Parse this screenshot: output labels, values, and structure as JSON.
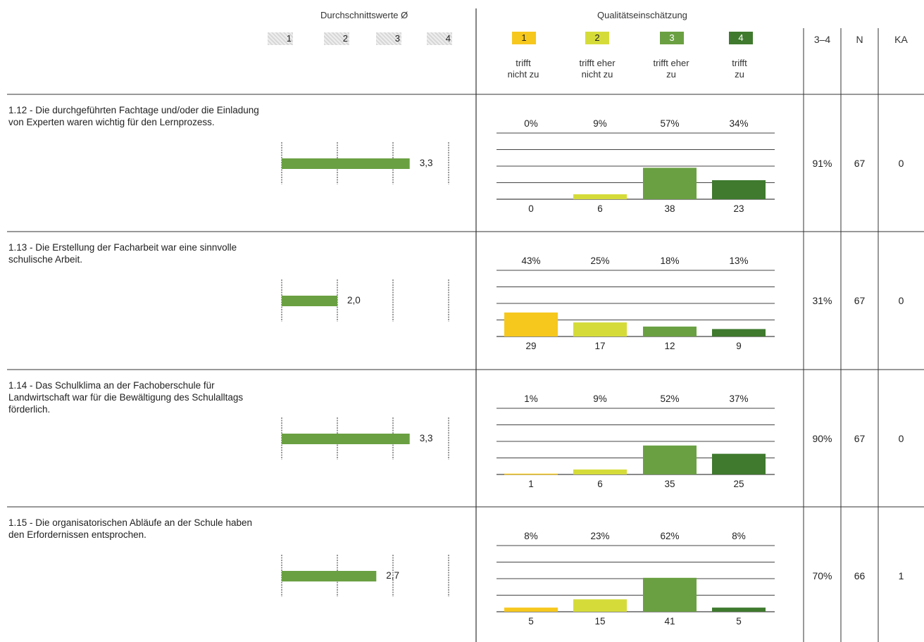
{
  "header": {
    "avg_title": "Durchschnittswerte Ø",
    "quality_title": "Qualitätseinschätzung",
    "scale_labels": [
      "1",
      "2",
      "3",
      "4"
    ],
    "categories": [
      {
        "num": "1",
        "line1": "trifft",
        "line2": "nicht zu"
      },
      {
        "num": "2",
        "line1": "trifft eher",
        "line2": "nicht zu"
      },
      {
        "num": "3",
        "line1": "trifft eher",
        "line2": "zu"
      },
      {
        "num": "4",
        "line1": "trifft",
        "line2": "zu"
      }
    ],
    "col_34": "3–4",
    "col_n": "N",
    "col_ka": "KA"
  },
  "colors": {
    "cat1": "#f6c81e",
    "cat2": "#d5dc3a",
    "cat3": "#6aa042",
    "cat4": "#3f7a2e",
    "avg_bar": "#6aa042"
  },
  "chart_data": [
    {
      "type": "bar",
      "question": "1.12 - Die durchgeführten Fachtage und/oder die Einladung von Experten waren wichtig für den Lernprozess.",
      "average": 3.3,
      "average_label": "3,3",
      "categories": [
        "1",
        "2",
        "3",
        "4"
      ],
      "percents": [
        "0%",
        "9%",
        "57%",
        "34%"
      ],
      "values": [
        0,
        6,
        38,
        23
      ],
      "share_3_4": "91%",
      "n": "67",
      "ka": "0"
    },
    {
      "type": "bar",
      "question": "1.13 - Die Erstellung der Facharbeit war eine sinnvolle schulische Arbeit.",
      "average": 2.0,
      "average_label": "2,0",
      "categories": [
        "1",
        "2",
        "3",
        "4"
      ],
      "percents": [
        "43%",
        "25%",
        "18%",
        "13%"
      ],
      "values": [
        29,
        17,
        12,
        9
      ],
      "share_3_4": "31%",
      "n": "67",
      "ka": "0"
    },
    {
      "type": "bar",
      "question": "1.14 - Das Schulklima an der Fachoberschule für Landwirtschaft war für die Bewältigung des Schulalltags förderlich.",
      "average": 3.3,
      "average_label": "3,3",
      "categories": [
        "1",
        "2",
        "3",
        "4"
      ],
      "percents": [
        "1%",
        "9%",
        "52%",
        "37%"
      ],
      "values": [
        1,
        6,
        35,
        25
      ],
      "share_3_4": "90%",
      "n": "67",
      "ka": "0"
    },
    {
      "type": "bar",
      "question": "1.15 - Die organisatorischen Abläufe an der Schule haben den Erfordernissen entsprochen.",
      "average": 2.7,
      "average_label": "2,7",
      "categories": [
        "1",
        "2",
        "3",
        "4"
      ],
      "percents": [
        "8%",
        "23%",
        "62%",
        "8%"
      ],
      "values": [
        5,
        15,
        41,
        5
      ],
      "share_3_4": "70%",
      "n": "66",
      "ka": "1"
    }
  ]
}
